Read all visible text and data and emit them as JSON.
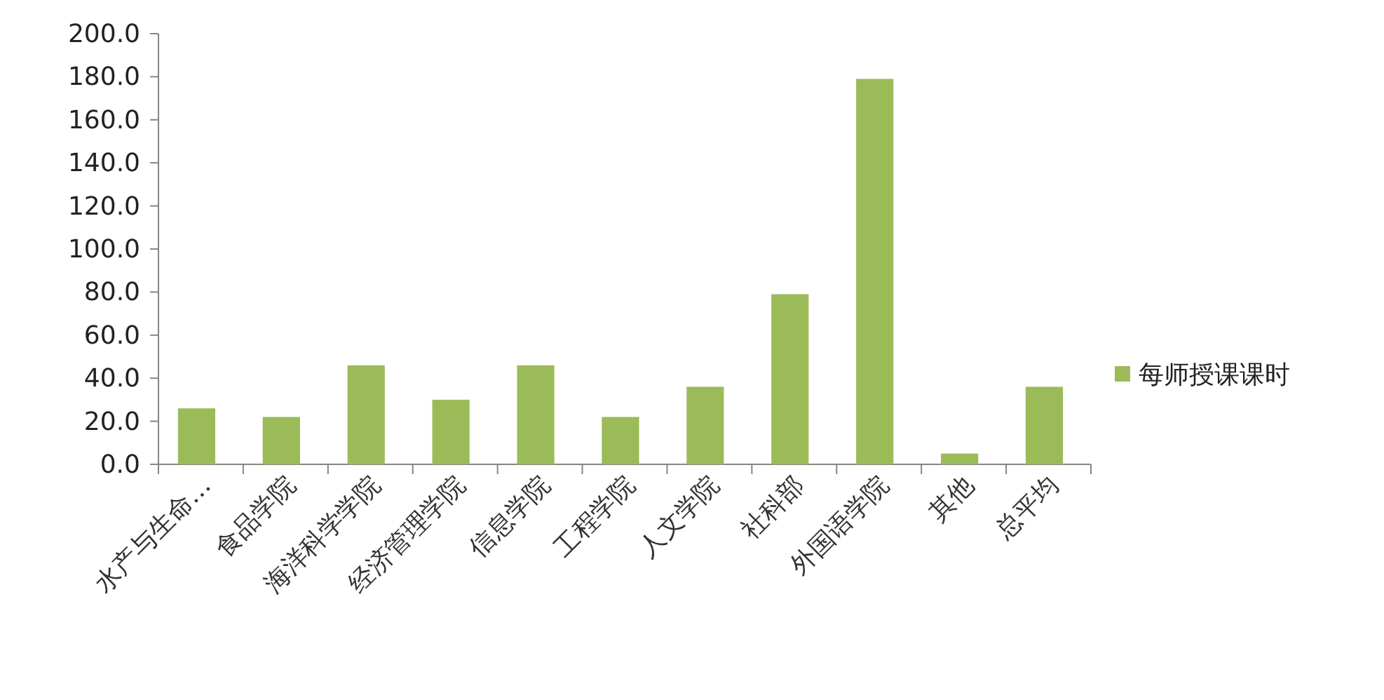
{
  "chart_data": {
    "type": "bar",
    "categories": [
      "水产与生命…",
      "食品学院",
      "海洋科学学院",
      "经济管理学院",
      "信息学院",
      "工程学院",
      "人文学院",
      "社科部",
      "外国语学院",
      "其他",
      "总平均"
    ],
    "series": [
      {
        "name": "每师授课课时",
        "color": "#9bbb59",
        "values": [
          26,
          22,
          46,
          30,
          46,
          22,
          36,
          79,
          179,
          5,
          36
        ]
      }
    ],
    "ylim": [
      0,
      200
    ],
    "yticks": [
      {
        "value": 0,
        "label": "0.0"
      },
      {
        "value": 20,
        "label": "20.0"
      },
      {
        "value": 40,
        "label": "40.0"
      },
      {
        "value": 60,
        "label": "60.0"
      },
      {
        "value": 80,
        "label": "80.0"
      },
      {
        "value": 100,
        "label": "100.0"
      },
      {
        "value": 120,
        "label": "120.0"
      },
      {
        "value": 140,
        "label": "140.0"
      },
      {
        "value": 160,
        "label": "160.0"
      },
      {
        "value": 180,
        "label": "180.0"
      },
      {
        "value": 200,
        "label": "200.0"
      }
    ],
    "grid": false,
    "legend": "right"
  }
}
